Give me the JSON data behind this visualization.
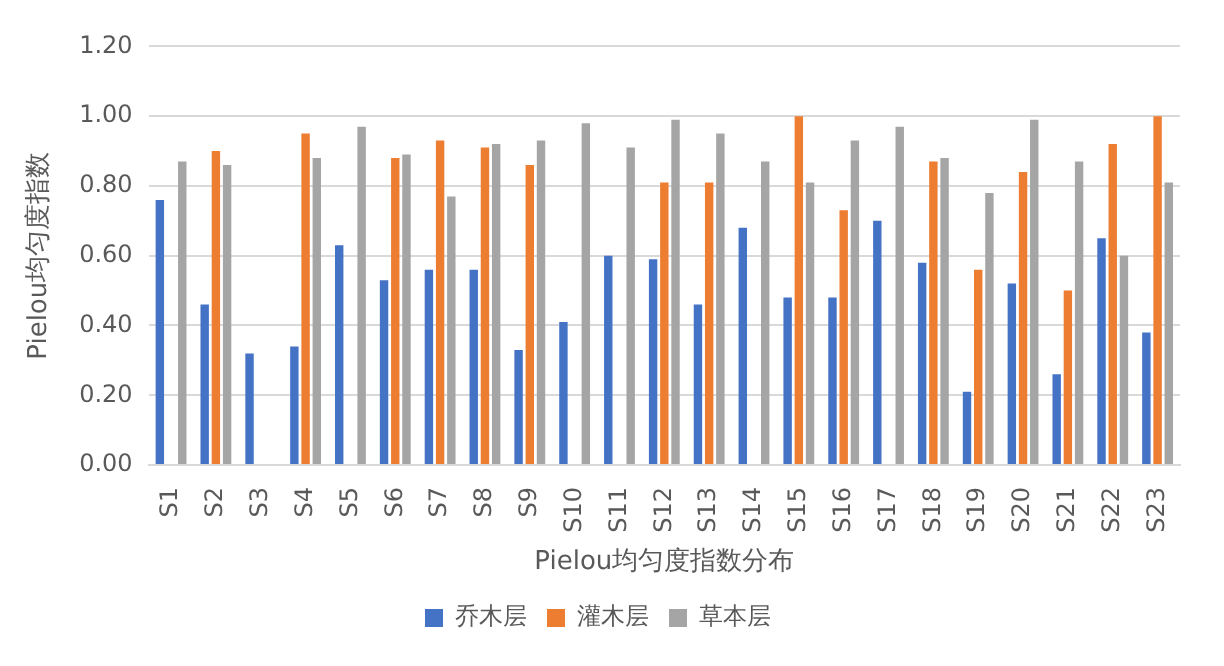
{
  "chart_data": {
    "type": "bar",
    "xlabel": "Pielou均匀度指数分布",
    "ylabel": "Pielou均匀度指数",
    "categories": [
      "S1",
      "S2",
      "S3",
      "S4",
      "S5",
      "S6",
      "S7",
      "S8",
      "S9",
      "S10",
      "S11",
      "S12",
      "S13",
      "S14",
      "S15",
      "S16",
      "S17",
      "S18",
      "S19",
      "S20",
      "S21",
      "S22",
      "S23"
    ],
    "series": [
      {
        "name": "乔木层",
        "color": "#4472c4",
        "values": [
          0.76,
          0.46,
          0.32,
          0.34,
          0.63,
          0.53,
          0.56,
          0.56,
          0.33,
          0.41,
          0.6,
          0.59,
          0.46,
          0.68,
          0.48,
          0.48,
          0.7,
          0.58,
          0.21,
          0.52,
          0.26,
          0.65,
          0.38
        ]
      },
      {
        "name": "灌木层",
        "color": "#ed7d31",
        "values": [
          null,
          0.9,
          null,
          0.95,
          null,
          0.88,
          0.93,
          0.91,
          0.86,
          null,
          null,
          0.81,
          0.81,
          null,
          1.0,
          0.73,
          null,
          0.87,
          0.56,
          0.84,
          0.5,
          0.92,
          1.0
        ]
      },
      {
        "name": "草本层",
        "color": "#a5a5a5",
        "values": [
          0.87,
          0.86,
          null,
          0.88,
          0.97,
          0.89,
          0.77,
          0.92,
          0.93,
          0.98,
          0.91,
          0.99,
          0.95,
          0.87,
          0.81,
          0.93,
          0.97,
          0.88,
          0.78,
          0.99,
          0.87,
          0.6,
          0.81
        ]
      }
    ],
    "ylim": [
      0,
      1.2
    ],
    "yticks": [
      {
        "value": 0,
        "label": "0.00"
      },
      {
        "value": 0.2,
        "label": "0.20"
      },
      {
        "value": 0.4,
        "label": "0.40"
      },
      {
        "value": 0.6,
        "label": "0.60"
      },
      {
        "value": 0.8,
        "label": "0.80"
      },
      {
        "value": 1.0,
        "label": "1.00"
      },
      {
        "value": 1.2,
        "label": "1.20"
      }
    ],
    "grid": "y",
    "legend": "bottom"
  }
}
